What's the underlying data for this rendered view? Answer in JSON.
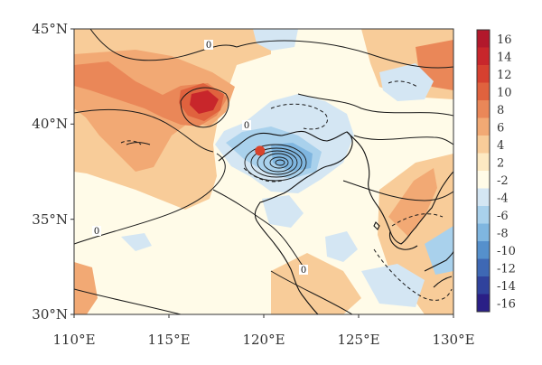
{
  "map": {
    "lat_labels": [
      "45°N",
      "40°N",
      "35°N",
      "30°N"
    ],
    "lon_labels": [
      "110°E",
      "115°E",
      "120°E",
      "125°E",
      "130°E"
    ],
    "lat_range": [
      30,
      45
    ],
    "lon_range": [
      110,
      130
    ],
    "marker": {
      "lon": 119.8,
      "lat": 38.6,
      "color": "#d9432b"
    },
    "contour_labels": [
      "0",
      "0",
      "0",
      "0"
    ]
  },
  "colorbar": {
    "labels": [
      "16",
      "14",
      "12",
      "10",
      "8",
      "6",
      "4",
      "2",
      "-2",
      "-4",
      "-6",
      "-8",
      "-10",
      "-12",
      "-14",
      "-16"
    ],
    "colors": [
      "#b2182b",
      "#c8262b",
      "#d6402f",
      "#e0623e",
      "#ea8758",
      "#f2a974",
      "#f8cc99",
      "#fde9c2",
      "#fffbe8",
      "#d4e6f3",
      "#a9d1ec",
      "#7fb6e0",
      "#5590cc",
      "#3e68b4",
      "#30429c",
      "#2a1f86"
    ]
  }
}
